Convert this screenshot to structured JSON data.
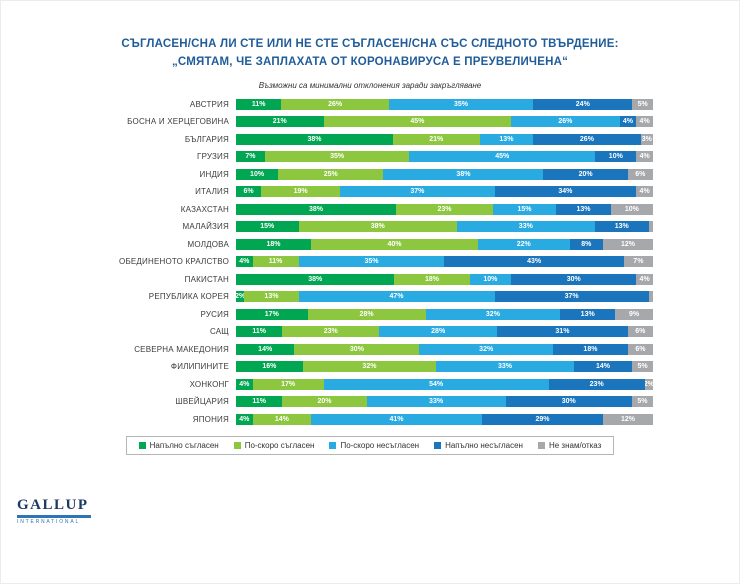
{
  "header": {
    "title_line1": "СЪГЛАСЕН/СНА ЛИ СТЕ ИЛИ НЕ СТЕ СЪГЛАСЕН/СНА СЪС СЛЕДНОТО ТВЪРДЕНИЕ:",
    "title_line2": "„СМЯТАМ, ЧЕ ЗАПЛАХАТА ОТ КОРОНАВИРУСА Е ПРЕУВЕЛИЧЕНА“",
    "subtitle": "Възможни са минимални отклонения заради закръгляване"
  },
  "chart_data": {
    "type": "bar",
    "orientation": "horizontal-stacked",
    "x_range_percent": [
      0,
      100
    ],
    "grid": false,
    "legend_position": "bottom",
    "categories": [
      "АВСТРИЯ",
      "БОСНА И ХЕРЦЕГОВИНА",
      "БЪЛГАРИЯ",
      "ГРУЗИЯ",
      "ИНДИЯ",
      "ИТАЛИЯ",
      "КАЗАХСТАН",
      "МАЛАЙЗИЯ",
      "МОЛДОВА",
      "ОБЕДИНЕНОТО КРАЛСТВО",
      "ПАКИСТАН",
      "РЕПУБЛИКА КОРЕЯ",
      "РУСИЯ",
      "САЩ",
      "СЕВЕРНА МАКЕДОНИЯ",
      "ФИЛИПИНИТЕ",
      "ХОНКОНГ",
      "ШВЕЙЦАРИЯ",
      "ЯПОНИЯ"
    ],
    "series": [
      {
        "name": "Напълно съгласен",
        "color": "#00a651",
        "values": [
          11,
          21,
          38,
          7,
          10,
          6,
          38,
          15,
          18,
          4,
          38,
          2,
          17,
          11,
          14,
          16,
          4,
          11,
          4
        ]
      },
      {
        "name": "По-скоро съгласен",
        "color": "#8dc63f",
        "values": [
          26,
          45,
          21,
          35,
          25,
          19,
          23,
          38,
          40,
          11,
          18,
          13,
          28,
          23,
          30,
          32,
          17,
          20,
          14
        ]
      },
      {
        "name": "По-скоро несъгласен",
        "color": "#29abe2",
        "values": [
          35,
          26,
          13,
          45,
          38,
          37,
          15,
          33,
          22,
          35,
          10,
          47,
          32,
          28,
          32,
          33,
          54,
          33,
          41
        ]
      },
      {
        "name": "Напълно несъгласен",
        "color": "#1b75bc",
        "values": [
          24,
          4,
          26,
          10,
          20,
          34,
          13,
          13,
          8,
          43,
          30,
          37,
          13,
          31,
          18,
          14,
          23,
          30,
          29
        ]
      },
      {
        "name": "Не знам/отказ",
        "color": "#a6a8ab",
        "values": [
          5,
          4,
          3,
          4,
          6,
          4,
          10,
          1,
          12,
          7,
          4,
          1,
          9,
          6,
          6,
          5,
          2,
          5,
          12
        ]
      }
    ]
  },
  "logo": {
    "name": "GALLUP",
    "subname": "INTERNATIONAL"
  }
}
